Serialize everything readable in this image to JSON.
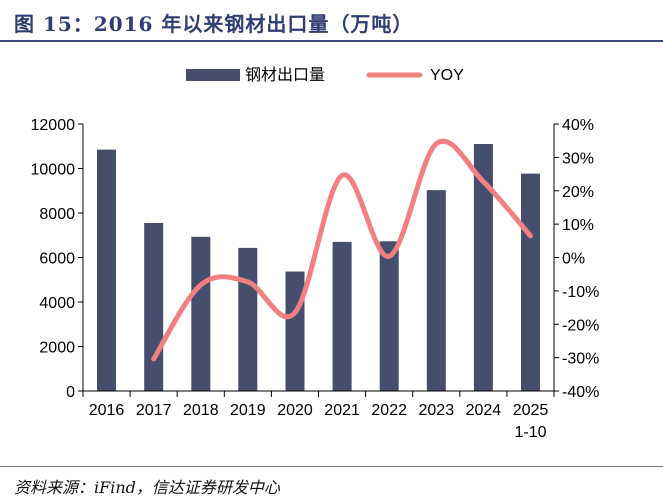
{
  "header": {
    "title": "图 15：2016 年以来钢材出口量（万吨）"
  },
  "footer": {
    "source": "资料来源：iFind，信达证券研发中心"
  },
  "colors": {
    "bar": "#454e6c",
    "line": "#f28080",
    "axis": "#000000",
    "title": "#2e3e73"
  },
  "chart_data": {
    "type": "bar+line",
    "title": "2016 年以来钢材出口量（万吨）",
    "categories": [
      "2016",
      "2017",
      "2018",
      "2019",
      "2020",
      "2021",
      "2022",
      "2023",
      "2024",
      "2025\n1-10"
    ],
    "series": [
      {
        "name": "钢材出口量",
        "type": "bar",
        "axis": "left",
        "values": [
          10850,
          7550,
          6930,
          6430,
          5370,
          6700,
          6730,
          9030,
          11100,
          9770
        ]
      },
      {
        "name": "YOY",
        "type": "line",
        "axis": "right",
        "values": [
          null,
          -30.4,
          -8.2,
          -7.3,
          -16.5,
          24.6,
          0.4,
          34.1,
          22.7,
          6.5
        ]
      }
    ],
    "y_left": {
      "min": 0,
      "max": 12000,
      "ticks": [
        0,
        2000,
        4000,
        6000,
        8000,
        10000,
        12000
      ]
    },
    "y_right": {
      "min": -40,
      "max": 40,
      "ticks": [
        "-40%",
        "-30%",
        "-20%",
        "-10%",
        "0%",
        "10%",
        "20%",
        "30%",
        "40%"
      ]
    },
    "legend": {
      "position": "top-center",
      "entries": [
        "钢材出口量",
        "YOY"
      ]
    },
    "grid": false
  }
}
